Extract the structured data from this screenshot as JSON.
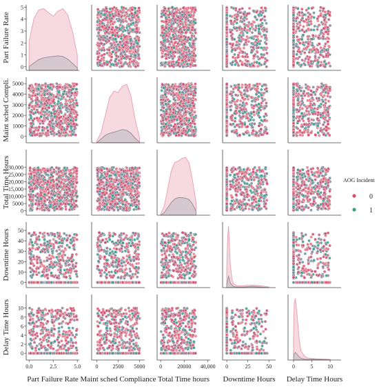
{
  "chart_data": {
    "type": "scatter",
    "subtype": "pairplot",
    "hue": "AOG Incident",
    "variables": [
      {
        "key": "part_failure_rate",
        "x_label": "Part Failure Rate",
        "y_label": "Part Failure Rate",
        "range": [
          -0.3,
          5.2
        ],
        "ticks": [
          0,
          2.5,
          5
        ],
        "tick_labels": [
          "0.0",
          "2.5",
          "5.0"
        ],
        "y_ticks": [
          0,
          1,
          2,
          3,
          4,
          5
        ],
        "y_tick_labels": [
          "0",
          "1",
          "2",
          "3",
          "4",
          "5"
        ]
      },
      {
        "key": "maint_sched_compliance",
        "x_label": "Maint sched Compliance",
        "y_label": "Maint sched Compli.",
        "range": [
          -600,
          5600
        ],
        "ticks": [
          0,
          2500,
          5000
        ],
        "tick_labels": [
          "0",
          "2500",
          "5000"
        ],
        "y_ticks": [
          0,
          1000,
          2000,
          3000,
          4000,
          5000
        ],
        "y_tick_labels": [
          "0",
          "1000",
          "2000",
          "3000",
          "4000",
          "5000"
        ]
      },
      {
        "key": "total_time_hours",
        "x_label": "Total Time hours",
        "y_label": "Total Time Hours",
        "range": [
          -3000,
          42000
        ],
        "ticks": [
          0,
          20000,
          40000
        ],
        "tick_labels": [
          "0",
          "20000",
          "40,000"
        ],
        "y_ticks": [
          0,
          5000,
          10000,
          15000,
          20000,
          25000,
          30000
        ],
        "y_tick_labels": [
          "0",
          "5000",
          "10,000",
          "15,000",
          "20,000",
          "25,000",
          "30,000"
        ]
      },
      {
        "key": "downtime_hours",
        "x_label": "Downtime Hours",
        "y_label": "Downtime Hours",
        "range": [
          -5,
          58
        ],
        "ticks": [
          0,
          25,
          50
        ],
        "tick_labels": [
          "0",
          "25",
          "50"
        ],
        "y_ticks": [
          0,
          10,
          20,
          30,
          40,
          50
        ],
        "y_tick_labels": [
          "0",
          "10",
          "20",
          "30",
          "40",
          "50"
        ]
      },
      {
        "key": "delay_time_hours",
        "x_label": "Delay Time Hours",
        "y_label": "Delay Time Hours",
        "range": [
          -1.5,
          13
        ],
        "ticks": [
          0,
          5,
          10
        ],
        "tick_labels": [
          "0",
          "5",
          "10"
        ],
        "y_ticks": [
          0,
          2,
          4,
          6,
          8,
          10
        ],
        "y_tick_labels": [
          "0",
          "2",
          "4",
          "6",
          "8",
          "10"
        ]
      }
    ],
    "series": [
      {
        "name": "0",
        "color": "#d94f6e",
        "kde_fill": "#f6d3dc",
        "kde_edge": "#e8a3b3"
      },
      {
        "name": "1",
        "color": "#3aa374",
        "kde_fill": "#c9c3c8",
        "kde_edge": "#9a8f98"
      }
    ],
    "point_colors": [
      "#d9506b",
      "#c84e74",
      "#df6a80",
      "#8f7f94",
      "#6a8f9e",
      "#3a9a8a",
      "#e37b8b",
      "#b85d7a"
    ],
    "diagonal_kde": [
      {
        "x": [
          0,
          0.5,
          1,
          1.5,
          2,
          2.5,
          3,
          3.5,
          4,
          4.5,
          5
        ],
        "class_0": [
          0.46,
          0.82,
          0.96,
          0.98,
          0.92,
          0.86,
          0.94,
          0.98,
          0.88,
          0.62,
          0.24
        ],
        "class_1": [
          0.06,
          0.12,
          0.17,
          0.2,
          0.21,
          0.22,
          0.23,
          0.22,
          0.18,
          0.11,
          0.04
        ]
      },
      {
        "x": [
          0,
          500,
          1000,
          1500,
          2000,
          2500,
          3000,
          3500,
          4000,
          4500,
          5000
        ],
        "class_0": [
          0.03,
          0.16,
          0.44,
          0.72,
          0.82,
          0.8,
          0.9,
          0.93,
          0.74,
          0.36,
          0.08
        ],
        "class_1": [
          0.0,
          0.06,
          0.12,
          0.15,
          0.17,
          0.19,
          0.21,
          0.2,
          0.15,
          0.07,
          0.01
        ]
      },
      {
        "x": [
          0,
          3000,
          6000,
          9000,
          12000,
          15000,
          18000,
          21000,
          24000,
          27000,
          30000
        ],
        "class_0": [
          0.02,
          0.14,
          0.42,
          0.7,
          0.84,
          0.86,
          0.9,
          0.92,
          0.84,
          0.56,
          0.2
        ],
        "class_1": [
          0.0,
          0.04,
          0.12,
          0.2,
          0.26,
          0.28,
          0.28,
          0.27,
          0.25,
          0.18,
          0.06
        ]
      },
      {
        "x": [
          0,
          1,
          2,
          3,
          4,
          6,
          8,
          12,
          20,
          30,
          40,
          50
        ],
        "class_0": [
          0.3,
          0.78,
          0.98,
          0.72,
          0.4,
          0.14,
          0.06,
          0.03,
          0.03,
          0.04,
          0.03,
          0.01
        ],
        "class_1": [
          0.05,
          0.12,
          0.18,
          0.14,
          0.08,
          0.04,
          0.02,
          0.01,
          0.01,
          0.02,
          0.01,
          0.0
        ]
      },
      {
        "x": [
          0,
          0.2,
          0.5,
          1,
          1.5,
          2,
          3,
          4,
          6,
          8,
          10
        ],
        "class_0": [
          0.4,
          0.9,
          0.98,
          0.7,
          0.36,
          0.15,
          0.06,
          0.03,
          0.02,
          0.015,
          0.01
        ],
        "class_1": [
          0.03,
          0.1,
          0.12,
          0.09,
          0.05,
          0.03,
          0.015,
          0.01,
          0.012,
          0.01,
          0.005
        ]
      }
    ]
  },
  "legend": {
    "title": "AOG Incident",
    "items": [
      {
        "label": "0",
        "color": "#d94f6e"
      },
      {
        "label": "1",
        "color": "#3aa374"
      }
    ]
  }
}
